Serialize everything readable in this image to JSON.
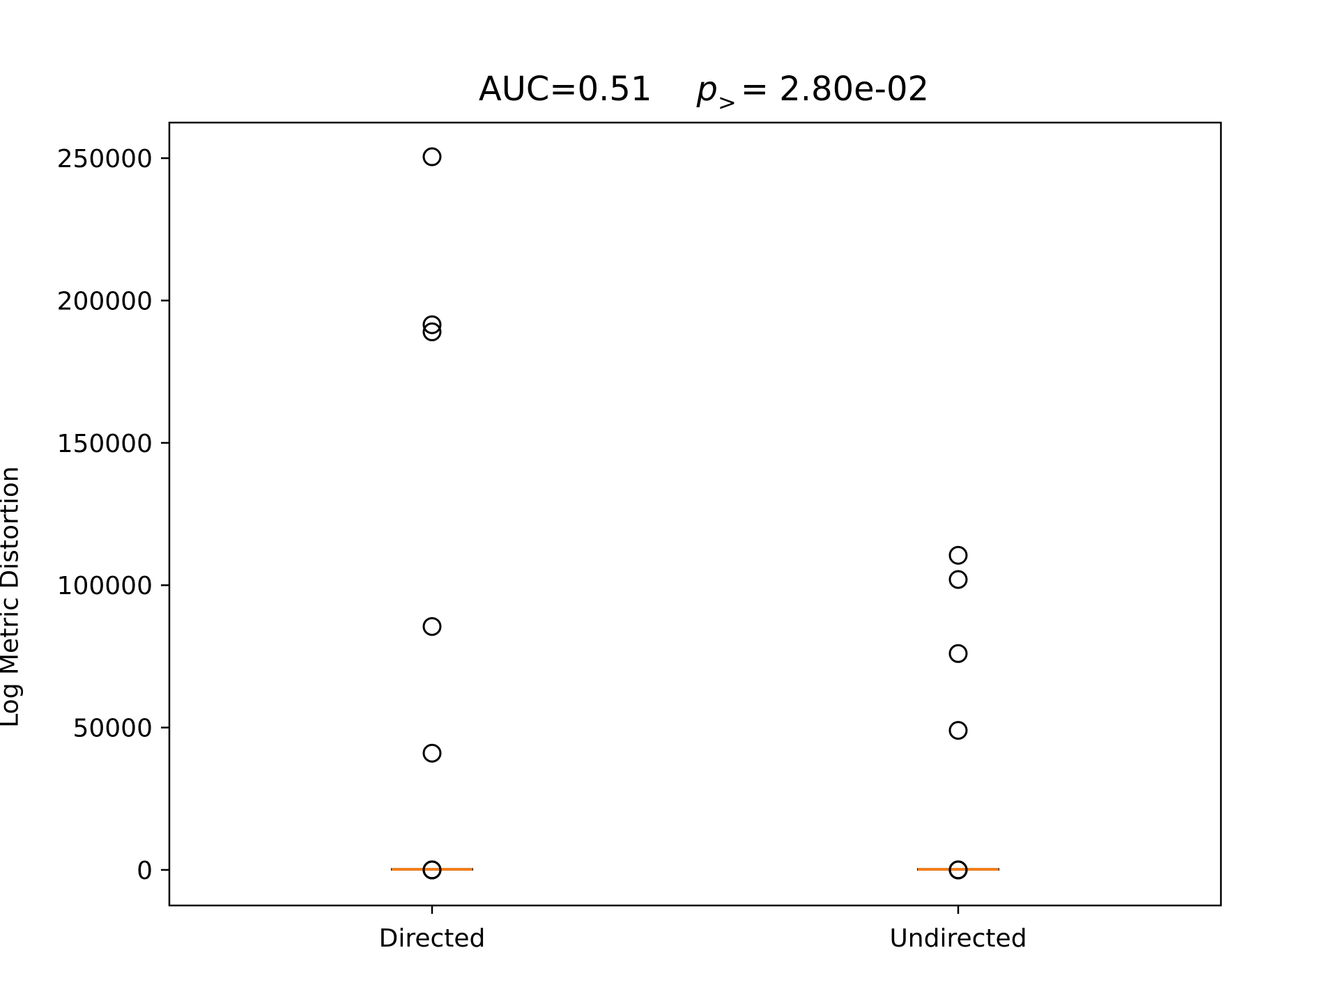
{
  "chart_data": {
    "type": "box",
    "title": {
      "auc_label": "AUC=0.51",
      "p_symbol": "p",
      "p_subscript": ">",
      "p_value_text": "= 2.80e-02"
    },
    "ylabel": "Log Metric Distortion",
    "xlabel": "",
    "categories": [
      "Directed",
      "Undirected"
    ],
    "ylim": [
      -12500,
      262500
    ],
    "yticks": [
      0,
      50000,
      100000,
      150000,
      200000,
      250000
    ],
    "ytick_labels": [
      "0",
      "50000",
      "100000",
      "150000",
      "200000",
      "250000"
    ],
    "grid": false,
    "series": [
      {
        "category": "Directed",
        "median": 200,
        "q1": 0,
        "q3": 400,
        "whisker_low": 0,
        "whisker_high": 600,
        "outliers": [
          250500,
          191500,
          189000,
          85500,
          41000,
          0,
          0,
          0
        ]
      },
      {
        "category": "Undirected",
        "median": 200,
        "q1": 0,
        "q3": 400,
        "whisker_low": 0,
        "whisker_high": 600,
        "outliers": [
          110500,
          102000,
          76000,
          49000,
          0,
          0,
          0
        ]
      }
    ],
    "colors": {
      "median": "#ff7f0e",
      "marker": "#000000",
      "axes": "#000000"
    }
  }
}
